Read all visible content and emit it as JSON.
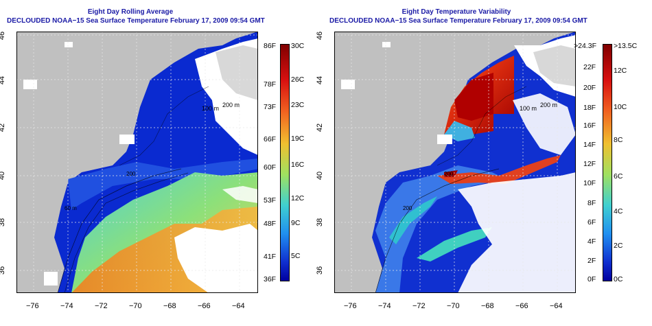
{
  "left_panel": {
    "title_line1": "Eight Day Rolling Average",
    "title_line2": "DECLOUDED NOAA−15 Sea Surface Temperature February 17, 2009 09:54 GMT",
    "lat_ticks": [
      "46",
      "44",
      "42",
      "40",
      "38",
      "36"
    ],
    "lon_ticks": [
      "−76",
      "−74",
      "−72",
      "−70",
      "−68",
      "−66",
      "−64"
    ],
    "colorbar_left_labels": [
      "86F",
      "78F",
      "73F",
      "66F",
      "60F",
      "53F",
      "48F",
      "41F",
      "36F"
    ],
    "colorbar_right_labels": [
      "30C",
      "26C",
      "23C",
      "19C",
      "16C",
      "12C",
      "9C",
      "5C"
    ],
    "isobath_labels": [
      "200 m",
      "100 m",
      "60 m",
      "200"
    ]
  },
  "right_panel": {
    "title_line1": "Eight Day Temperature Variability",
    "title_line2": "DECLOUDED NOAA−15 Sea Surface Temperature February 17, 2009 09:54 GMT",
    "lat_ticks": [
      "46",
      "44",
      "42",
      "40",
      "38",
      "36"
    ],
    "lon_ticks": [
      "−76",
      "−74",
      "−72",
      "−70",
      "−68",
      "−66",
      "−64"
    ],
    "colorbar_left_labels": [
      ">24.3F",
      "22F",
      "20F",
      "18F",
      "16F",
      "14F",
      "12F",
      "10F",
      "8F",
      "6F",
      "4F",
      "2F",
      "0F"
    ],
    "colorbar_right_labels": [
      ">13.5C",
      "12C",
      "10C",
      "8C",
      "6C",
      "4C",
      "2C",
      "0C"
    ],
    "isobath_labels": [
      "200 m",
      "100 m",
      "200",
      "200"
    ]
  },
  "colors": {
    "title": "#1a1aa6",
    "land": "#c0c0c0",
    "cloud": "#ffffff",
    "ocean_cold": "#0a2ad0"
  }
}
